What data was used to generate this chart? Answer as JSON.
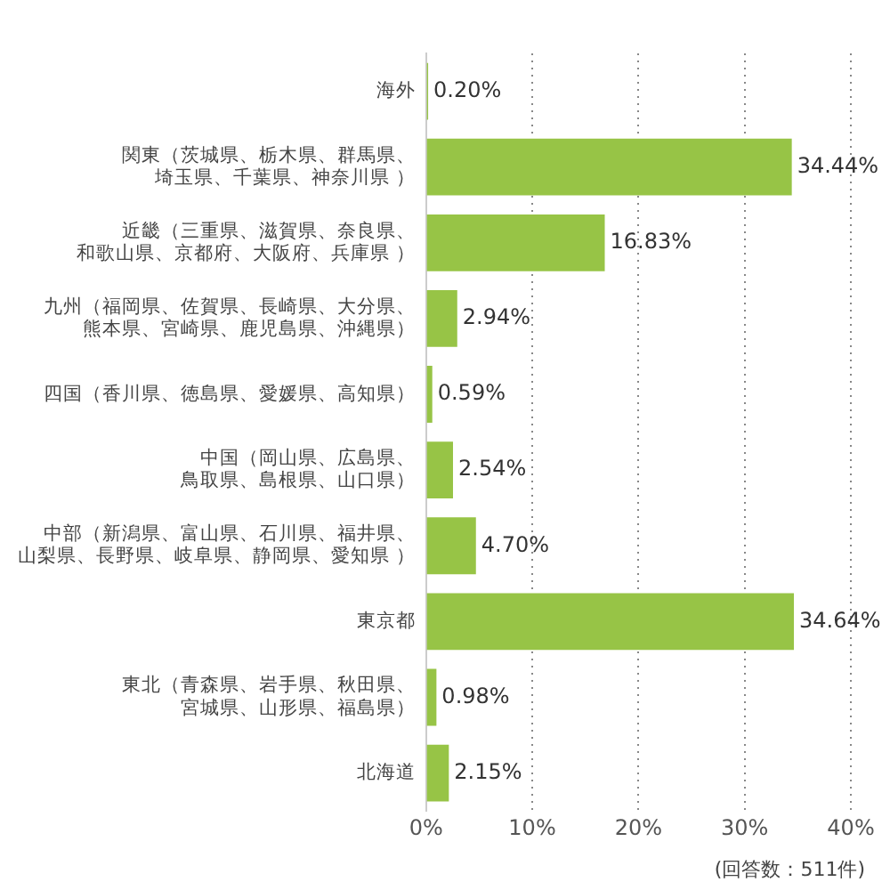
{
  "chart_data": {
    "type": "bar",
    "orientation": "horizontal",
    "categories": [
      "海外",
      "関東（茨城県、栃木県、群馬県、埼玉県、千葉県、神奈川県 ）",
      "近畿（三重県、滋賀県、奈良県、和歌山県、京都府、大阪府、兵庫県 ）",
      "九州（福岡県、佐賀県、長崎県、大分県、熊本県、宮崎県、鹿児島県、沖縄県）",
      "四国（香川県、徳島県、愛媛県、高知県）",
      "中国（岡山県、広島県、鳥取県、島根県、山口県）",
      "中部（新潟県、富山県、石川県、福井県、山梨県、長野県、岐阜県、静岡県、愛知県 ）",
      "東京都",
      "東北（青森県、岩手県、秋田県、宮城県、山形県、福島県）",
      "北海道"
    ],
    "values": [
      0.2,
      34.44,
      16.83,
      2.94,
      0.59,
      2.54,
      4.7,
      34.64,
      0.98,
      2.15
    ],
    "value_labels": [
      "0.20%",
      "34.44%",
      "16.83%",
      "2.94%",
      "0.59%",
      "2.54%",
      "4.70%",
      "34.64%",
      "0.98%",
      "2.15%"
    ],
    "color": "#97c446",
    "xlim": [
      0,
      40
    ],
    "xticks": [
      {
        "value": 0,
        "label": "0%"
      },
      {
        "value": 10,
        "label": "10%"
      },
      {
        "value": 20,
        "label": "20%"
      },
      {
        "value": 30,
        "label": "30%"
      },
      {
        "value": 40,
        "label": "40%"
      }
    ],
    "grid": "x",
    "annotations": [
      "(回答数：511件)"
    ]
  }
}
